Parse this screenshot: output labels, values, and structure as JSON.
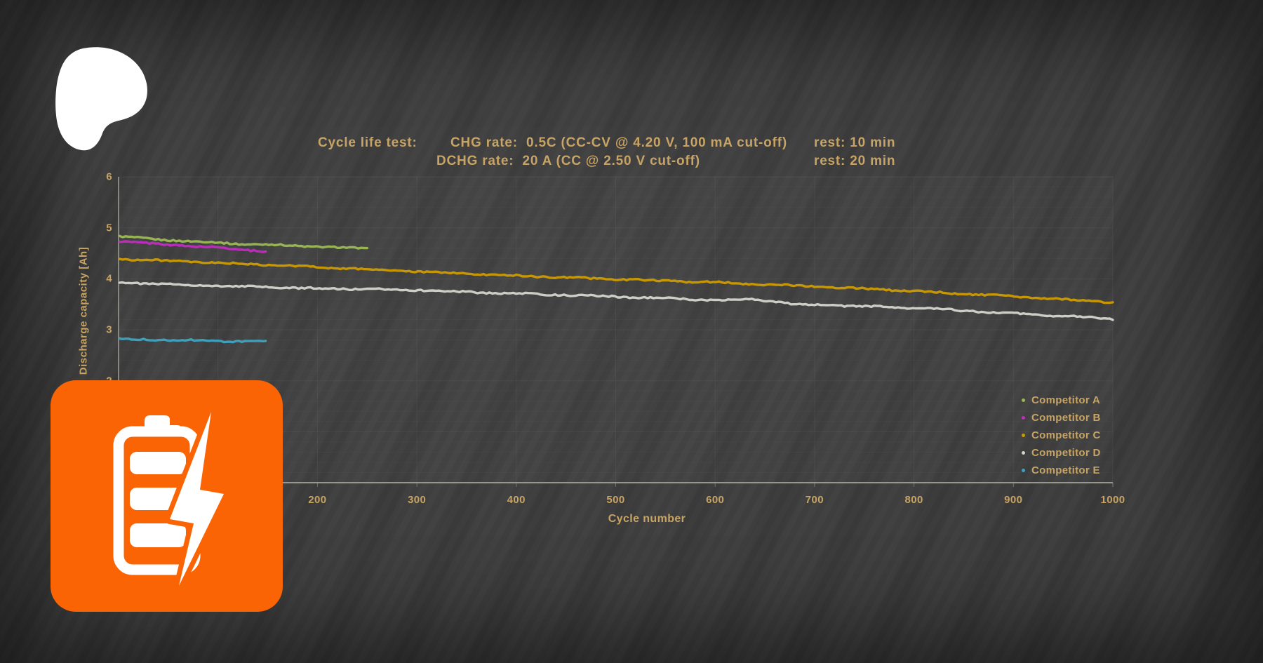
{
  "page": {
    "background_color": "#3c3c3c",
    "text_color": "#C7A465"
  },
  "branding": {
    "patreon_logo": {
      "color": "#ffffff"
    },
    "battery_app_icon": {
      "background_color": "#FA6405",
      "glyph_color": "#ffffff"
    }
  },
  "chart_data": {
    "type": "line",
    "title": {
      "row1_left": "Cycle life test:",
      "row1_mid": "CHG rate:  0.5C (CC-CV @ 4.20 V, 100 mA cut-off)",
      "row1_right": "rest: 10 min",
      "row2_mid": "DCHG rate:  20 A (CC @ 2.50 V cut-off)",
      "row2_right": "rest: 20 min"
    },
    "xlabel": "Cycle number",
    "ylabel": "Discharge capacity [Ah]",
    "xlim": [
      0,
      1000
    ],
    "ylim": [
      0,
      6
    ],
    "x_ticks_visible": [
      200,
      300,
      400,
      500,
      600,
      700,
      800,
      900,
      1000
    ],
    "y_ticks_visible": [
      6,
      5,
      4,
      3,
      2
    ],
    "grid": {
      "vertical_major_every": 100,
      "horizontal_major_every": 1,
      "horizontal_minor_every": 0.2
    },
    "legend_position": "inside-bottom-right",
    "series": [
      {
        "name": "Competitor A",
        "color": "#9BB954",
        "x": [
          1,
          25,
          50,
          75,
          100,
          125,
          150,
          175,
          200,
          225,
          250
        ],
        "y": [
          4.83,
          4.79,
          4.76,
          4.73,
          4.71,
          4.68,
          4.67,
          4.65,
          4.63,
          4.61,
          4.59
        ]
      },
      {
        "name": "Competitor B",
        "color": "#BF2DBF",
        "x": [
          1,
          25,
          50,
          75,
          100,
          125,
          150
        ],
        "y": [
          4.74,
          4.7,
          4.67,
          4.64,
          4.61,
          4.57,
          4.54
        ]
      },
      {
        "name": "Competitor C",
        "color": "#CC9A02",
        "x": [
          1,
          100,
          200,
          300,
          400,
          500,
          600,
          700,
          800,
          900,
          1000
        ],
        "y": [
          4.39,
          4.31,
          4.23,
          4.14,
          4.06,
          3.99,
          3.93,
          3.85,
          3.76,
          3.65,
          3.54
        ]
      },
      {
        "name": "Competitor D",
        "color": "#D3D3CB",
        "x": [
          1,
          50,
          100,
          200,
          300,
          350,
          400,
          500,
          600,
          640,
          680,
          750,
          800,
          900,
          950,
          1000
        ],
        "y": [
          3.93,
          3.89,
          3.86,
          3.81,
          3.78,
          3.74,
          3.71,
          3.65,
          3.58,
          3.6,
          3.5,
          3.46,
          3.43,
          3.32,
          3.27,
          3.21
        ]
      },
      {
        "name": "Competitor E",
        "color": "#3FA2BE",
        "x": [
          1,
          25,
          50,
          75,
          100,
          125,
          150
        ],
        "y": [
          2.82,
          2.81,
          2.8,
          2.79,
          2.78,
          2.77,
          2.76
        ]
      }
    ]
  }
}
